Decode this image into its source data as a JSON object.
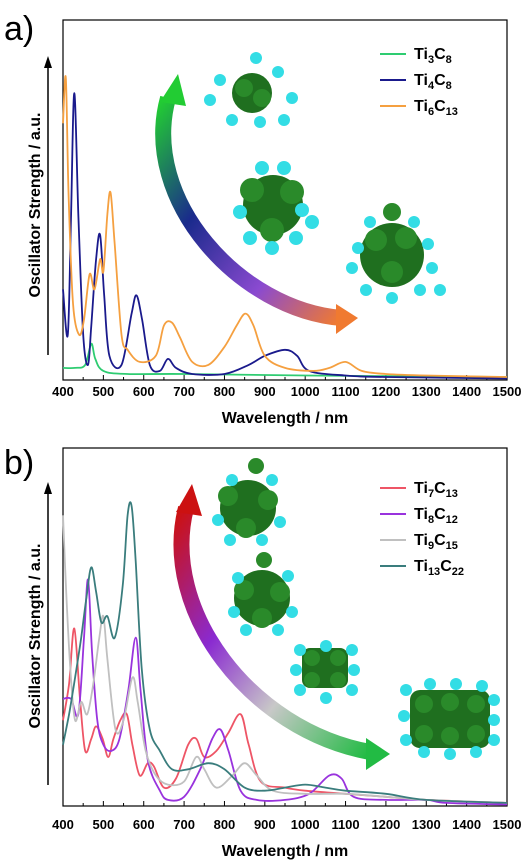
{
  "chart_data": [
    {
      "panel": "a)",
      "type": "line",
      "xlabel": "Wavelength / nm",
      "ylabel": "Oscillator Strength / a.u.",
      "xlim": [
        400,
        1500
      ],
      "xticks": [
        400,
        500,
        600,
        700,
        800,
        900,
        1000,
        1100,
        1200,
        1300,
        1400,
        1500
      ],
      "yticks": "none",
      "legend_position": "top-right",
      "series": [
        {
          "name": "Ti3C8",
          "base": "Ti",
          "n1": "3",
          "mid": "C",
          "n2": "8",
          "color": "#2ecc71",
          "points": [
            [
              400,
              0.04
            ],
            [
              430,
              0.04
            ],
            [
              455,
              0.05
            ],
            [
              470,
              0.12
            ],
            [
              480,
              0.07
            ],
            [
              500,
              0.03
            ],
            [
              560,
              0.02
            ],
            [
              700,
              0.02
            ],
            [
              1000,
              0.015
            ],
            [
              1500,
              0.01
            ]
          ]
        },
        {
          "name": "Ti4C8",
          "base": "Ti",
          "n1": "4",
          "mid": "C",
          "n2": "8",
          "color": "#1a1a8c",
          "points": [
            [
              400,
              0.3
            ],
            [
              412,
              0.15
            ],
            [
              420,
              0.55
            ],
            [
              428,
              0.95
            ],
            [
              438,
              0.55
            ],
            [
              450,
              0.15
            ],
            [
              462,
              0.05
            ],
            [
              470,
              0.18
            ],
            [
              482,
              0.4
            ],
            [
              492,
              0.48
            ],
            [
              502,
              0.28
            ],
            [
              515,
              0.08
            ],
            [
              545,
              0.05
            ],
            [
              570,
              0.22
            ],
            [
              582,
              0.28
            ],
            [
              596,
              0.2
            ],
            [
              615,
              0.05
            ],
            [
              640,
              0.03
            ],
            [
              660,
              0.07
            ],
            [
              680,
              0.04
            ],
            [
              720,
              0.02
            ],
            [
              800,
              0.02
            ],
            [
              860,
              0.05
            ],
            [
              900,
              0.08
            ],
            [
              950,
              0.1
            ],
            [
              980,
              0.08
            ],
            [
              1010,
              0.03
            ],
            [
              1100,
              0.015
            ],
            [
              1200,
              0.01
            ],
            [
              1500,
              0.005
            ]
          ]
        },
        {
          "name": "Ti6C13",
          "base": "Ti",
          "n1": "6",
          "mid": "C",
          "n2": "13",
          "color": "#f5a040",
          "points": [
            [
              400,
              0.85
            ],
            [
              407,
              1.0
            ],
            [
              414,
              0.6
            ],
            [
              425,
              0.25
            ],
            [
              440,
              0.15
            ],
            [
              452,
              0.2
            ],
            [
              466,
              0.35
            ],
            [
              478,
              0.3
            ],
            [
              492,
              0.4
            ],
            [
              500,
              0.36
            ],
            [
              510,
              0.55
            ],
            [
              518,
              0.62
            ],
            [
              528,
              0.45
            ],
            [
              545,
              0.15
            ],
            [
              560,
              0.1
            ],
            [
              590,
              0.06
            ],
            [
              630,
              0.08
            ],
            [
              650,
              0.18
            ],
            [
              670,
              0.19
            ],
            [
              690,
              0.14
            ],
            [
              720,
              0.06
            ],
            [
              760,
              0.05
            ],
            [
              800,
              0.11
            ],
            [
              830,
              0.18
            ],
            [
              852,
              0.22
            ],
            [
              872,
              0.18
            ],
            [
              900,
              0.08
            ],
            [
              950,
              0.04
            ],
            [
              1020,
              0.03
            ],
            [
              1060,
              0.04
            ],
            [
              1100,
              0.06
            ],
            [
              1140,
              0.03
            ],
            [
              1200,
              0.02
            ],
            [
              1300,
              0.015
            ],
            [
              1500,
              0.01
            ]
          ]
        }
      ]
    },
    {
      "panel": "b)",
      "type": "line",
      "xlabel": "Wavelength / nm",
      "ylabel": "Oscillator Strength / a.u.",
      "xlim": [
        400,
        1500
      ],
      "xticks": [
        400,
        500,
        600,
        700,
        800,
        900,
        1000,
        1100,
        1200,
        1300,
        1400,
        1500
      ],
      "yticks": "none",
      "legend_position": "top-right",
      "series": [
        {
          "name": "Ti7C13",
          "base": "Ti",
          "n1": "7",
          "mid": "C",
          "n2": "13",
          "color": "#ee5566",
          "points": [
            [
              400,
              0.28
            ],
            [
              415,
              0.4
            ],
            [
              428,
              0.58
            ],
            [
              442,
              0.35
            ],
            [
              455,
              0.18
            ],
            [
              470,
              0.22
            ],
            [
              482,
              0.26
            ],
            [
              498,
              0.22
            ],
            [
              512,
              0.16
            ],
            [
              525,
              0.22
            ],
            [
              542,
              0.28
            ],
            [
              558,
              0.3
            ],
            [
              572,
              0.2
            ],
            [
              590,
              0.1
            ],
            [
              610,
              0.14
            ],
            [
              625,
              0.13
            ],
            [
              650,
              0.06
            ],
            [
              680,
              0.09
            ],
            [
              710,
              0.2
            ],
            [
              730,
              0.22
            ],
            [
              750,
              0.16
            ],
            [
              780,
              0.18
            ],
            [
              810,
              0.24
            ],
            [
              840,
              0.3
            ],
            [
              860,
              0.2
            ],
            [
              890,
              0.08
            ],
            [
              950,
              0.06
            ],
            [
              1000,
              0.05
            ],
            [
              1100,
              0.04
            ],
            [
              1200,
              0.03
            ],
            [
              1300,
              0.02
            ],
            [
              1500,
              0.01
            ]
          ]
        },
        {
          "name": "Ti8C12",
          "base": "Ti",
          "n1": "8",
          "mid": "C",
          "n2": "12",
          "color": "#9933dd",
          "points": [
            [
              400,
              0.35
            ],
            [
              420,
              0.35
            ],
            [
              438,
              0.3
            ],
            [
              452,
              0.55
            ],
            [
              462,
              0.74
            ],
            [
              472,
              0.5
            ],
            [
              485,
              0.28
            ],
            [
              500,
              0.2
            ],
            [
              520,
              0.18
            ],
            [
              540,
              0.22
            ],
            [
              562,
              0.38
            ],
            [
              580,
              0.55
            ],
            [
              592,
              0.38
            ],
            [
              610,
              0.15
            ],
            [
              640,
              0.05
            ],
            [
              660,
              0.02
            ],
            [
              700,
              0.03
            ],
            [
              740,
              0.12
            ],
            [
              770,
              0.22
            ],
            [
              790,
              0.25
            ],
            [
              810,
              0.18
            ],
            [
              840,
              0.05
            ],
            [
              880,
              0.02
            ],
            [
              950,
              0.02
            ],
            [
              1010,
              0.04
            ],
            [
              1060,
              0.1
            ],
            [
              1090,
              0.09
            ],
            [
              1120,
              0.03
            ],
            [
              1200,
              0.02
            ],
            [
              1300,
              0.02
            ],
            [
              1350,
              0.01
            ],
            [
              1500,
              0.005
            ]
          ]
        },
        {
          "name": "Ti9C15",
          "base": "Ti",
          "n1": "9",
          "mid": "C",
          "n2": "15",
          "color": "#c0c0c0",
          "points": [
            [
              400,
              0.95
            ],
            [
              408,
              0.7
            ],
            [
              418,
              0.45
            ],
            [
              430,
              0.28
            ],
            [
              445,
              0.34
            ],
            [
              460,
              0.3
            ],
            [
              475,
              0.4
            ],
            [
              490,
              0.55
            ],
            [
              500,
              0.62
            ],
            [
              510,
              0.48
            ],
            [
              530,
              0.25
            ],
            [
              550,
              0.28
            ],
            [
              572,
              0.42
            ],
            [
              585,
              0.34
            ],
            [
              605,
              0.18
            ],
            [
              630,
              0.1
            ],
            [
              660,
              0.07
            ],
            [
              700,
              0.08
            ],
            [
              730,
              0.16
            ],
            [
              750,
              0.12
            ],
            [
              780,
              0.06
            ],
            [
              820,
              0.1
            ],
            [
              850,
              0.14
            ],
            [
              880,
              0.1
            ],
            [
              920,
              0.05
            ],
            [
              1000,
              0.04
            ],
            [
              1100,
              0.04
            ],
            [
              1200,
              0.03
            ],
            [
              1300,
              0.02
            ],
            [
              1500,
              0.01
            ]
          ]
        },
        {
          "name": "Ti13C22",
          "base": "Ti",
          "n1": "13",
          "mid": "C",
          "n2": "22",
          "color": "#3a7d7d",
          "points": [
            [
              400,
              0.2
            ],
            [
              415,
              0.3
            ],
            [
              430,
              0.42
            ],
            [
              445,
              0.55
            ],
            [
              458,
              0.68
            ],
            [
              470,
              0.78
            ],
            [
              482,
              0.7
            ],
            [
              495,
              0.6
            ],
            [
              510,
              0.62
            ],
            [
              528,
              0.55
            ],
            [
              548,
              0.72
            ],
            [
              560,
              0.95
            ],
            [
              570,
              0.98
            ],
            [
              580,
              0.8
            ],
            [
              595,
              0.45
            ],
            [
              615,
              0.25
            ],
            [
              640,
              0.18
            ],
            [
              670,
              0.12
            ],
            [
              710,
              0.12
            ],
            [
              760,
              0.14
            ],
            [
              800,
              0.12
            ],
            [
              850,
              0.06
            ],
            [
              900,
              0.05
            ],
            [
              950,
              0.06
            ],
            [
              1000,
              0.07
            ],
            [
              1050,
              0.06
            ],
            [
              1100,
              0.05
            ],
            [
              1200,
              0.04
            ],
            [
              1300,
              0.02
            ],
            [
              1500,
              0.01
            ]
          ]
        }
      ]
    }
  ]
}
